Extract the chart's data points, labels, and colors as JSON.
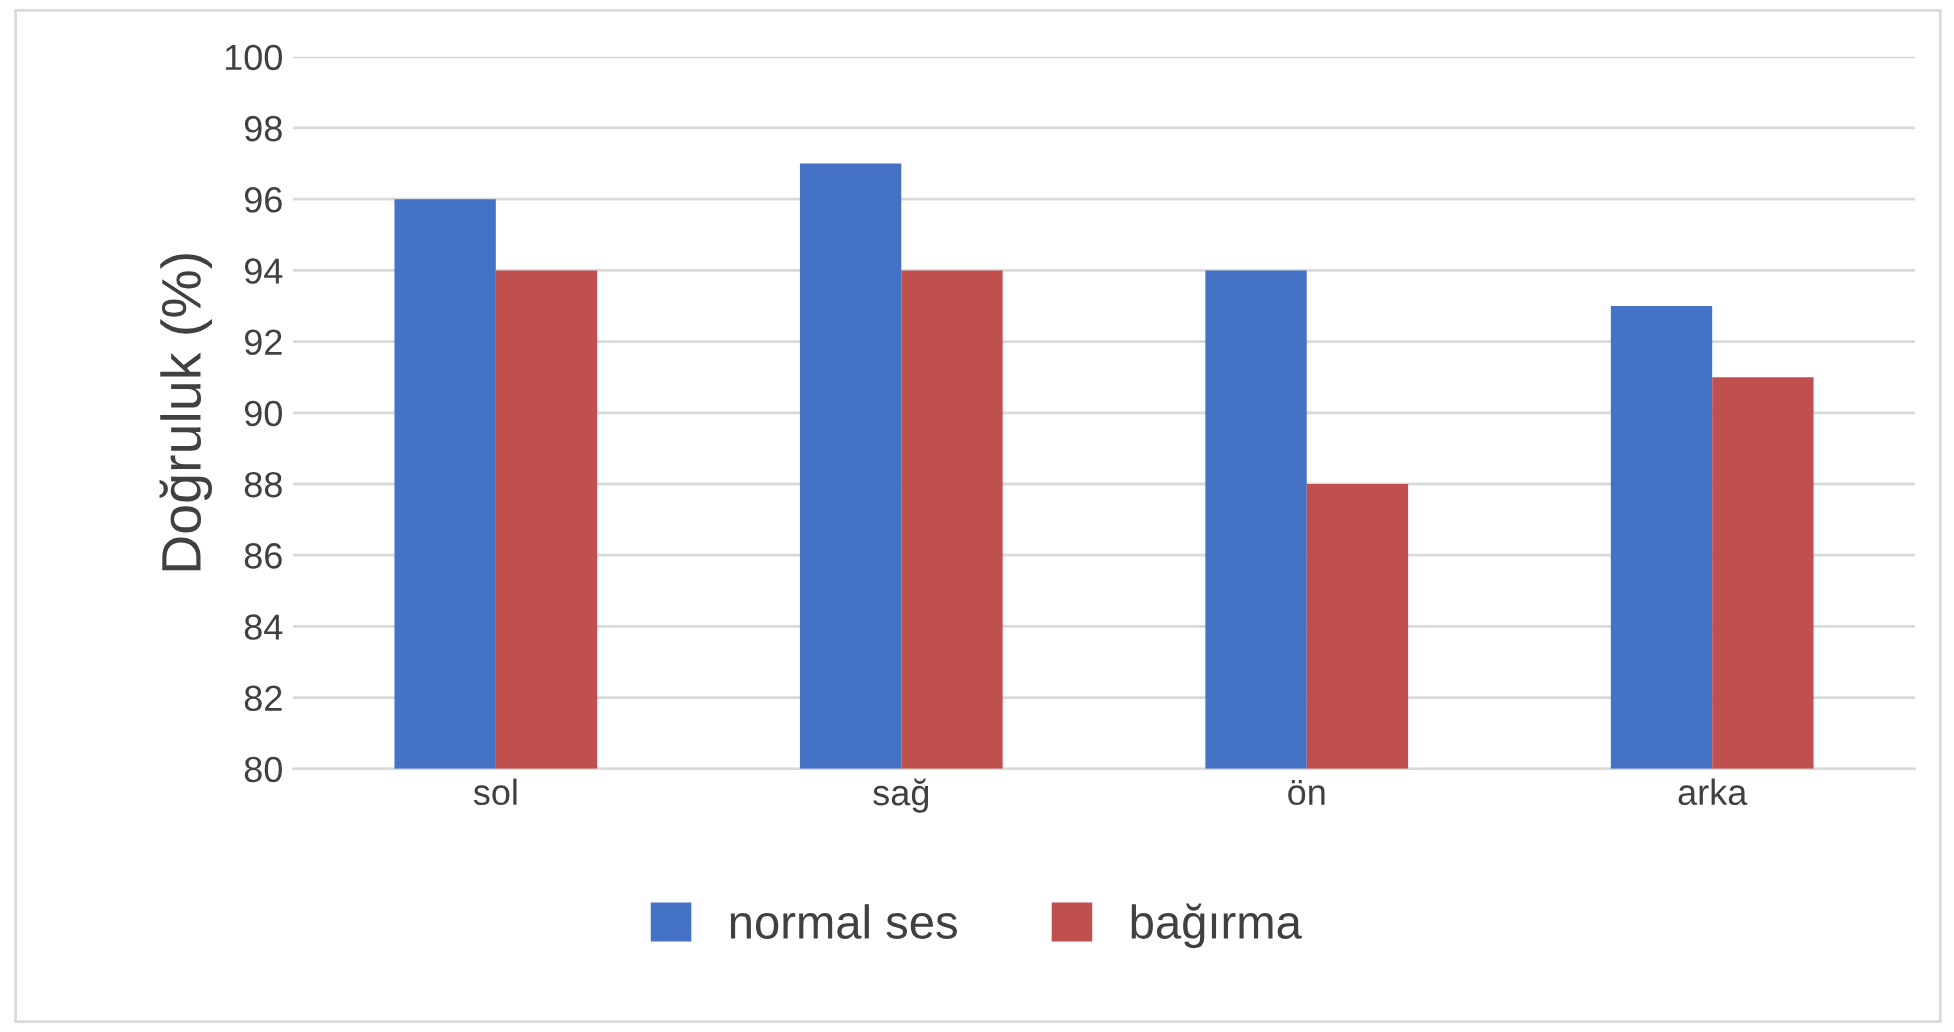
{
  "chart_data": {
    "type": "bar",
    "ylabel": "Doğruluk (%)",
    "categories": [
      "sol",
      "sağ",
      "ön",
      "arka"
    ],
    "series": [
      {
        "name": "normal ses",
        "color": "#4472c4",
        "values": [
          96,
          97,
          94,
          93
        ]
      },
      {
        "name": "bağırma",
        "color": "#c0504d",
        "values": [
          94,
          94,
          88,
          91
        ]
      }
    ],
    "ylim": [
      80,
      100
    ],
    "yticks": [
      80,
      82,
      84,
      86,
      88,
      90,
      92,
      94,
      96,
      98,
      100
    ],
    "grid": "y",
    "legend": "bottom"
  }
}
